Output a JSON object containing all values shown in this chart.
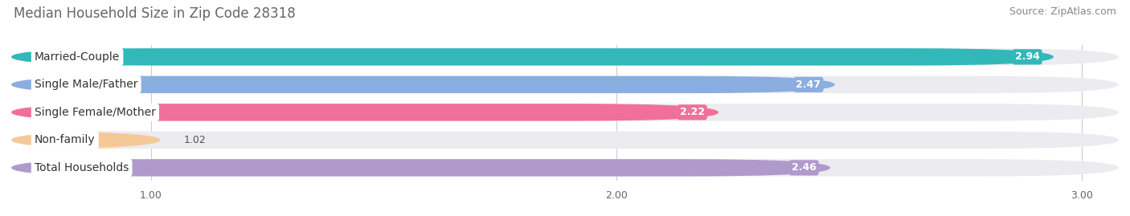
{
  "title": "Median Household Size in Zip Code 28318",
  "source": "Source: ZipAtlas.com",
  "categories": [
    "Married-Couple",
    "Single Male/Father",
    "Single Female/Mother",
    "Non-family",
    "Total Households"
  ],
  "values": [
    2.94,
    2.47,
    2.22,
    1.02,
    2.46
  ],
  "bar_colors": [
    "#32b8b8",
    "#8aaee0",
    "#f0709a",
    "#f5c898",
    "#b09acc"
  ],
  "background_color": "#ffffff",
  "bar_background_color": "#ebebf0",
  "xlim_left": 0.7,
  "xlim_right": 3.08,
  "xticks": [
    1.0,
    2.0,
    3.0
  ],
  "title_fontsize": 12,
  "source_fontsize": 9,
  "label_fontsize": 10,
  "value_fontsize": 9,
  "bar_height": 0.62,
  "bar_gap": 1.0
}
